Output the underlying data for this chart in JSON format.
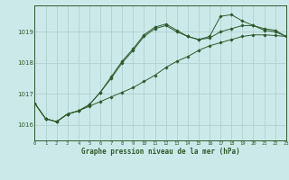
{
  "title": "Graphe pression niveau de la mer (hPa)",
  "bg_color": "#cce9e9",
  "grid_color": "#b0d0d0",
  "line_color": "#2d5a2d",
  "x_min": 0,
  "x_max": 23,
  "y_min": 1015.5,
  "y_max": 1019.85,
  "yticks": [
    1016,
    1017,
    1018,
    1019
  ],
  "xticks": [
    0,
    1,
    2,
    3,
    4,
    5,
    6,
    7,
    8,
    9,
    10,
    11,
    12,
    13,
    14,
    15,
    16,
    17,
    18,
    19,
    20,
    21,
    22,
    23
  ],
  "series": [
    [
      1016.7,
      1016.2,
      1016.1,
      1016.35,
      1016.45,
      1016.6,
      1016.75,
      1016.9,
      1017.05,
      1017.2,
      1017.4,
      1017.6,
      1017.85,
      1018.05,
      1018.2,
      1018.4,
      1018.55,
      1018.65,
      1018.75,
      1018.85,
      1018.9,
      1018.9,
      1018.88,
      1018.85
    ],
    [
      1016.7,
      1016.2,
      1016.1,
      1016.35,
      1016.45,
      1016.65,
      1017.05,
      1017.5,
      1018.0,
      1018.4,
      1018.85,
      1019.1,
      1019.2,
      1019.0,
      1018.85,
      1018.75,
      1018.8,
      1019.0,
      1019.1,
      1019.2,
      1019.2,
      1019.1,
      1019.05,
      1018.85
    ],
    [
      1016.7,
      1016.2,
      1016.1,
      1016.35,
      1016.45,
      1016.65,
      1017.05,
      1017.55,
      1018.05,
      1018.45,
      1018.9,
      1019.15,
      1019.25,
      1019.05,
      1018.85,
      1018.75,
      1018.85,
      1019.5,
      1019.55,
      1019.35,
      1019.2,
      1019.05,
      1019.0,
      1018.85
    ]
  ]
}
